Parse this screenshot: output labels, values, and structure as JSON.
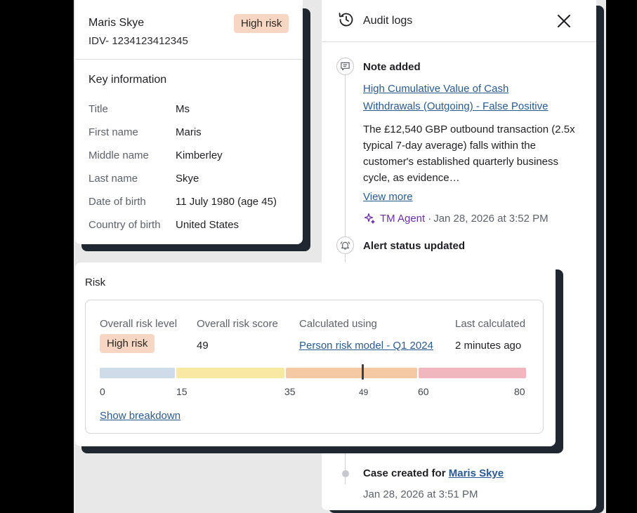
{
  "person": {
    "name": "Maris Skye",
    "id": "IDV- 1234123412345",
    "risk_badge": "High risk",
    "section_title": "Key information",
    "fields": [
      {
        "label": "Title",
        "value": "Ms"
      },
      {
        "label": "First name",
        "value": "Maris"
      },
      {
        "label": "Middle name",
        "value": "Kimberley"
      },
      {
        "label": "Last name",
        "value": "Skye"
      },
      {
        "label": "Date of birth",
        "value": "11 July 1980 (age 45)"
      },
      {
        "label": "Country of birth",
        "value": "United States"
      }
    ]
  },
  "audit": {
    "title": "Audit logs",
    "icons": {
      "header": "history-icon",
      "close": "close-icon",
      "note": "comment-icon",
      "alert": "bell-icon",
      "agent": "sparkle-icon"
    },
    "events": [
      {
        "type": "Note added",
        "link_line1": "High Cumulative Value of Cash",
        "link_line2": "Withdrawals (Outgoing) - False Positive",
        "body": "The £12,540 GBP outbound transaction (2.5x typical 7-day average) falls within the customer's established quarterly business cycle, as evidence…",
        "view_more": "View more",
        "agent": "TM Agent",
        "timestamp": "Jan 28, 2026 at 3:52 PM"
      },
      {
        "type": "Alert status updated"
      },
      {
        "type_prefix": "Case created for",
        "subject": "Maris Skye",
        "timestamp": "Jan 28, 2026 at 3:51 PM"
      }
    ]
  },
  "risk": {
    "title": "Risk",
    "labels": {
      "level": "Overall risk level",
      "score": "Overall risk score",
      "calc": "Calculated using",
      "last": "Last calculated"
    },
    "level": "High risk",
    "score": "49",
    "model": "Person risk model - Q1 2024",
    "last_calculated": "2 minutes ago",
    "scale": {
      "ticks": [
        "0",
        "15",
        "35",
        "49",
        "60",
        "80"
      ],
      "segment_colors": [
        "#cfdbe8",
        "#f7e9a4",
        "#f5c9a3",
        "#f1b7bf"
      ],
      "marker_value": 49
    },
    "breakdown": "Show breakdown"
  }
}
